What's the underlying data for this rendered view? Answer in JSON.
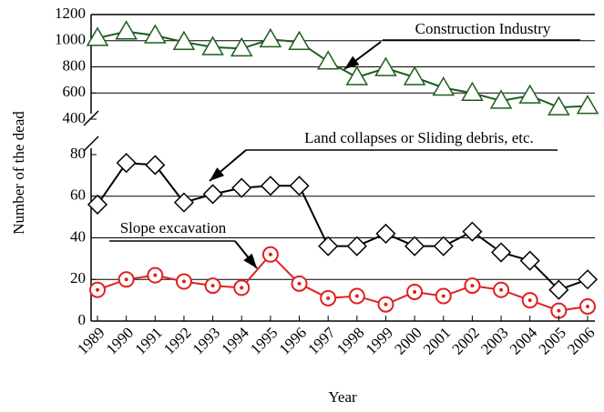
{
  "chart_data": [
    {
      "type": "line",
      "ylim": [
        400,
        1200
      ],
      "yticks": [
        400,
        600,
        800,
        1000,
        1200
      ],
      "grid": true,
      "series": [
        {
          "name": "Construction Industry",
          "color": "#1d5e1d",
          "marker": "triangle",
          "values": [
            1020,
            1070,
            1040,
            990,
            950,
            940,
            1010,
            990,
            840,
            720,
            790,
            720,
            640,
            600,
            540,
            580,
            490,
            500
          ]
        }
      ]
    },
    {
      "type": "line",
      "ylim": [
        0,
        80
      ],
      "yticks": [
        0,
        20,
        40,
        60,
        80
      ],
      "grid": true,
      "xlabel": "Year",
      "ylabel": "Number of the dead",
      "categories": [
        "1989",
        "1990",
        "1991",
        "1992",
        "1993",
        "1994",
        "1995",
        "1996",
        "1997",
        "1998",
        "1999",
        "2000",
        "2001",
        "2002",
        "2003",
        "2004",
        "2005",
        "2006"
      ],
      "series": [
        {
          "name": "Land collapses or Sliding debris, etc.",
          "color": "#000000",
          "marker": "diamond",
          "values": [
            56,
            76,
            75,
            57,
            61,
            64,
            65,
            65,
            36,
            36,
            42,
            36,
            36,
            43,
            33,
            29,
            15,
            20
          ]
        },
        {
          "name": "Slope excavation",
          "color": "#e02020",
          "marker": "circle",
          "values": [
            15,
            20,
            22,
            19,
            17,
            16,
            32,
            18,
            11,
            12,
            8,
            14,
            12,
            17,
            15,
            10,
            5,
            7
          ]
        }
      ]
    }
  ]
}
